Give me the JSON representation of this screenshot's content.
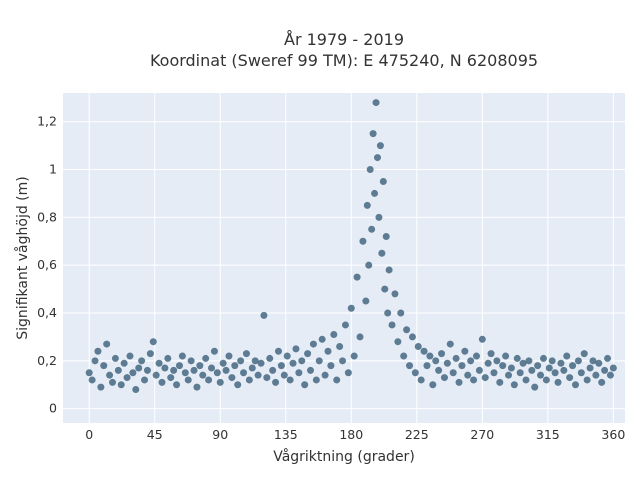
{
  "chart_data": {
    "type": "scatter",
    "title_line1": "År 1979 - 2019",
    "title_line2": "Koordinat (Sweref 99 TM): E 475240, N 6208095",
    "xlabel": "Vågriktning (grader)",
    "ylabel": "Signifikant våghöjd (m)",
    "xlim": [
      -18,
      368
    ],
    "ylim": [
      -0.06,
      1.32
    ],
    "x_ticks": [
      {
        "value": 0,
        "label": "0"
      },
      {
        "value": 45,
        "label": "45"
      },
      {
        "value": 90,
        "label": "90"
      },
      {
        "value": 135,
        "label": "135"
      },
      {
        "value": 180,
        "label": "180"
      },
      {
        "value": 225,
        "label": "225"
      },
      {
        "value": 270,
        "label": "270"
      },
      {
        "value": 315,
        "label": "315"
      },
      {
        "value": 360,
        "label": "360"
      }
    ],
    "y_ticks": [
      {
        "value": 0,
        "label": "0"
      },
      {
        "value": 0.2,
        "label": "0,2"
      },
      {
        "value": 0.4,
        "label": "0,4"
      },
      {
        "value": 0.6,
        "label": "0,6"
      },
      {
        "value": 0.8,
        "label": "0,8"
      },
      {
        "value": 1.0,
        "label": "1"
      },
      {
        "value": 1.2,
        "label": "1,2"
      }
    ],
    "grid": true,
    "marker_color": "#2f5670",
    "plot_background": "#e5ecf6",
    "series": [
      {
        "name": "",
        "points": [
          [
            0,
            0.15
          ],
          [
            2,
            0.12
          ],
          [
            4,
            0.2
          ],
          [
            6,
            0.24
          ],
          [
            8,
            0.09
          ],
          [
            10,
            0.18
          ],
          [
            12,
            0.27
          ],
          [
            14,
            0.14
          ],
          [
            16,
            0.11
          ],
          [
            18,
            0.21
          ],
          [
            20,
            0.16
          ],
          [
            22,
            0.1
          ],
          [
            24,
            0.19
          ],
          [
            26,
            0.13
          ],
          [
            28,
            0.22
          ],
          [
            30,
            0.15
          ],
          [
            32,
            0.08
          ],
          [
            34,
            0.17
          ],
          [
            36,
            0.2
          ],
          [
            38,
            0.12
          ],
          [
            40,
            0.16
          ],
          [
            42,
            0.23
          ],
          [
            44,
            0.28
          ],
          [
            46,
            0.14
          ],
          [
            48,
            0.19
          ],
          [
            50,
            0.11
          ],
          [
            52,
            0.17
          ],
          [
            54,
            0.21
          ],
          [
            56,
            0.13
          ],
          [
            58,
            0.16
          ],
          [
            60,
            0.1
          ],
          [
            62,
            0.18
          ],
          [
            64,
            0.22
          ],
          [
            66,
            0.15
          ],
          [
            68,
            0.12
          ],
          [
            70,
            0.2
          ],
          [
            72,
            0.16
          ],
          [
            74,
            0.09
          ],
          [
            76,
            0.18
          ],
          [
            78,
            0.14
          ],
          [
            80,
            0.21
          ],
          [
            82,
            0.12
          ],
          [
            84,
            0.17
          ],
          [
            86,
            0.24
          ],
          [
            88,
            0.15
          ],
          [
            90,
            0.11
          ],
          [
            92,
            0.19
          ],
          [
            94,
            0.16
          ],
          [
            96,
            0.22
          ],
          [
            98,
            0.13
          ],
          [
            100,
            0.18
          ],
          [
            102,
            0.1
          ],
          [
            104,
            0.2
          ],
          [
            106,
            0.15
          ],
          [
            108,
            0.23
          ],
          [
            110,
            0.12
          ],
          [
            112,
            0.17
          ],
          [
            114,
            0.2
          ],
          [
            116,
            0.14
          ],
          [
            118,
            0.19
          ],
          [
            120,
            0.39
          ],
          [
            122,
            0.13
          ],
          [
            124,
            0.21
          ],
          [
            126,
            0.16
          ],
          [
            128,
            0.11
          ],
          [
            130,
            0.24
          ],
          [
            132,
            0.18
          ],
          [
            134,
            0.14
          ],
          [
            136,
            0.22
          ],
          [
            138,
            0.12
          ],
          [
            140,
            0.19
          ],
          [
            142,
            0.25
          ],
          [
            144,
            0.15
          ],
          [
            146,
            0.2
          ],
          [
            148,
            0.1
          ],
          [
            150,
            0.23
          ],
          [
            152,
            0.16
          ],
          [
            154,
            0.27
          ],
          [
            156,
            0.12
          ],
          [
            158,
            0.2
          ],
          [
            160,
            0.29
          ],
          [
            162,
            0.14
          ],
          [
            164,
            0.24
          ],
          [
            166,
            0.18
          ],
          [
            168,
            0.31
          ],
          [
            170,
            0.12
          ],
          [
            172,
            0.26
          ],
          [
            174,
            0.2
          ],
          [
            176,
            0.35
          ],
          [
            178,
            0.15
          ],
          [
            180,
            0.42
          ],
          [
            182,
            0.22
          ],
          [
            184,
            0.55
          ],
          [
            186,
            0.3
          ],
          [
            188,
            0.7
          ],
          [
            190,
            0.45
          ],
          [
            191,
            0.85
          ],
          [
            192,
            0.6
          ],
          [
            193,
            1.0
          ],
          [
            194,
            0.75
          ],
          [
            195,
            1.15
          ],
          [
            196,
            0.9
          ],
          [
            197,
            1.28
          ],
          [
            198,
            1.05
          ],
          [
            199,
            0.8
          ],
          [
            200,
            1.1
          ],
          [
            201,
            0.65
          ],
          [
            202,
            0.95
          ],
          [
            203,
            0.5
          ],
          [
            204,
            0.72
          ],
          [
            205,
            0.4
          ],
          [
            206,
            0.58
          ],
          [
            208,
            0.35
          ],
          [
            210,
            0.48
          ],
          [
            212,
            0.28
          ],
          [
            214,
            0.4
          ],
          [
            216,
            0.22
          ],
          [
            218,
            0.33
          ],
          [
            220,
            0.18
          ],
          [
            222,
            0.3
          ],
          [
            224,
            0.15
          ],
          [
            226,
            0.26
          ],
          [
            228,
            0.12
          ],
          [
            230,
            0.24
          ],
          [
            232,
            0.18
          ],
          [
            234,
            0.22
          ],
          [
            236,
            0.1
          ],
          [
            238,
            0.2
          ],
          [
            240,
            0.16
          ],
          [
            242,
            0.23
          ],
          [
            244,
            0.13
          ],
          [
            246,
            0.19
          ],
          [
            248,
            0.27
          ],
          [
            250,
            0.15
          ],
          [
            252,
            0.21
          ],
          [
            254,
            0.11
          ],
          [
            256,
            0.18
          ],
          [
            258,
            0.24
          ],
          [
            260,
            0.14
          ],
          [
            262,
            0.2
          ],
          [
            264,
            0.12
          ],
          [
            266,
            0.22
          ],
          [
            268,
            0.16
          ],
          [
            270,
            0.29
          ],
          [
            272,
            0.13
          ],
          [
            274,
            0.19
          ],
          [
            276,
            0.23
          ],
          [
            278,
            0.15
          ],
          [
            280,
            0.2
          ],
          [
            282,
            0.11
          ],
          [
            284,
            0.18
          ],
          [
            286,
            0.22
          ],
          [
            288,
            0.14
          ],
          [
            290,
            0.17
          ],
          [
            292,
            0.1
          ],
          [
            294,
            0.21
          ],
          [
            296,
            0.15
          ],
          [
            298,
            0.19
          ],
          [
            300,
            0.12
          ],
          [
            302,
            0.2
          ],
          [
            304,
            0.16
          ],
          [
            306,
            0.09
          ],
          [
            308,
            0.18
          ],
          [
            310,
            0.14
          ],
          [
            312,
            0.21
          ],
          [
            314,
            0.12
          ],
          [
            316,
            0.17
          ],
          [
            318,
            0.2
          ],
          [
            320,
            0.15
          ],
          [
            322,
            0.11
          ],
          [
            324,
            0.19
          ],
          [
            326,
            0.16
          ],
          [
            328,
            0.22
          ],
          [
            330,
            0.13
          ],
          [
            332,
            0.18
          ],
          [
            334,
            0.1
          ],
          [
            336,
            0.2
          ],
          [
            338,
            0.15
          ],
          [
            340,
            0.23
          ],
          [
            342,
            0.12
          ],
          [
            344,
            0.17
          ],
          [
            346,
            0.2
          ],
          [
            348,
            0.14
          ],
          [
            350,
            0.19
          ],
          [
            352,
            0.11
          ],
          [
            354,
            0.16
          ],
          [
            356,
            0.21
          ],
          [
            358,
            0.14
          ],
          [
            360,
            0.17
          ]
        ]
      }
    ]
  }
}
